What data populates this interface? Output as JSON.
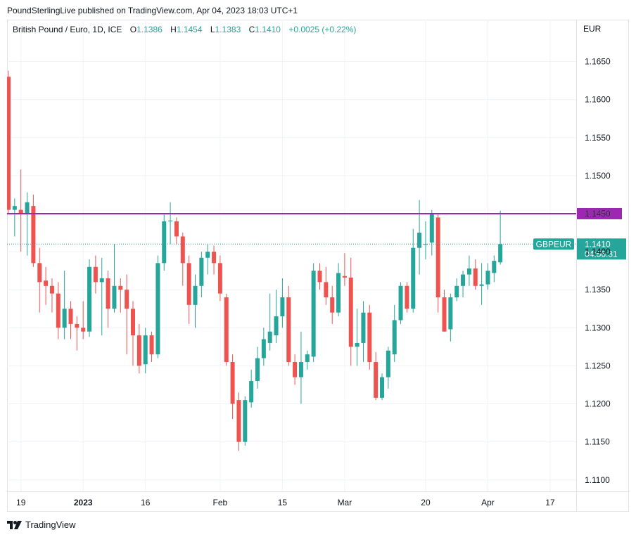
{
  "publisher": "PoundSterlingLive published on TradingView.com, Apr 04, 2023 18:03 UTC+1",
  "legend": {
    "symbol": "British Pound / Euro, 1D, ICE",
    "o_label": "O",
    "o_value": "1.1386",
    "h_label": "H",
    "h_value": "1.1454",
    "l_label": "L",
    "l_value": "1.1383",
    "c_label": "C",
    "c_value": "1.1410",
    "change": "+0.0025 (+0.22%)"
  },
  "currency": "EUR",
  "footer_brand": "TradingView",
  "colors": {
    "up": "#26a69a",
    "down": "#ef5350",
    "level": "#9c27b0",
    "grid": "#f0f3fa",
    "axis_text": "#131722"
  },
  "chart_data": {
    "type": "candlestick",
    "title": "British Pound / Euro, 1D, ICE",
    "ylabel": "EUR",
    "ylim": [
      1.1085,
      1.1705
    ],
    "y_ticks": [
      "1.1650",
      "1.1600",
      "1.1550",
      "1.1500",
      "1.1450",
      "1.1400",
      "1.1350",
      "1.1300",
      "1.1250",
      "1.1200",
      "1.1150",
      "1.1100"
    ],
    "x_ticks": [
      {
        "label": "19",
        "index": 2
      },
      {
        "label": "2023",
        "index": 12
      },
      {
        "label": "16",
        "index": 22
      },
      {
        "label": "Feb",
        "index": 34
      },
      {
        "label": "15",
        "index": 44
      },
      {
        "label": "Mar",
        "index": 54
      },
      {
        "label": "20",
        "index": 67
      },
      {
        "label": "Apr",
        "index": 77
      },
      {
        "label": "17",
        "index": 87
      }
    ],
    "resistance_level": {
      "value": 1.145,
      "label": "1.1450"
    },
    "last_price": {
      "value": 1.141,
      "label": "1.1410",
      "countdown": "04:56:31",
      "symbol": "GBPEUR"
    },
    "candles": [
      [
        1.163,
        1.1638,
        1.145,
        1.1455
      ],
      [
        1.1455,
        1.147,
        1.142,
        1.146
      ],
      [
        1.1455,
        1.1508,
        1.14,
        1.145
      ],
      [
        1.145,
        1.1478,
        1.1395,
        1.1465
      ],
      [
        1.146,
        1.1475,
        1.138,
        1.1385
      ],
      [
        1.1385,
        1.1405,
        1.132,
        1.136
      ],
      [
        1.1362,
        1.138,
        1.133,
        1.1355
      ],
      [
        1.1355,
        1.1365,
        1.132,
        1.1345
      ],
      [
        1.1345,
        1.136,
        1.1285,
        1.13
      ],
      [
        1.13,
        1.1375,
        1.1285,
        1.1325
      ],
      [
        1.1325,
        1.1335,
        1.1285,
        1.1305
      ],
      [
        1.1305,
        1.1315,
        1.127,
        1.13
      ],
      [
        1.13,
        1.1335,
        1.1285,
        1.1295
      ],
      [
        1.1295,
        1.139,
        1.1288,
        1.138
      ],
      [
        1.138,
        1.1395,
        1.1345,
        1.136
      ],
      [
        1.136,
        1.1392,
        1.129,
        1.1365
      ],
      [
        1.1365,
        1.1375,
        1.13,
        1.1325
      ],
      [
        1.1325,
        1.141,
        1.132,
        1.1355
      ],
      [
        1.1355,
        1.1365,
        1.132,
        1.135
      ],
      [
        1.135,
        1.137,
        1.1265,
        1.1325
      ],
      [
        1.1325,
        1.1335,
        1.125,
        1.129
      ],
      [
        1.129,
        1.1305,
        1.124,
        1.125
      ],
      [
        1.1252,
        1.13,
        1.124,
        1.129
      ],
      [
        1.129,
        1.1295,
        1.1255,
        1.1265
      ],
      [
        1.1265,
        1.1395,
        1.126,
        1.1385
      ],
      [
        1.1385,
        1.145,
        1.1375,
        1.144
      ],
      [
        1.144,
        1.1465,
        1.141,
        1.1441
      ],
      [
        1.144,
        1.1445,
        1.141,
        1.142
      ],
      [
        1.142,
        1.1425,
        1.1355,
        1.1385
      ],
      [
        1.1385,
        1.1395,
        1.1305,
        1.133
      ],
      [
        1.133,
        1.137,
        1.13,
        1.1355
      ],
      [
        1.1355,
        1.14,
        1.134,
        1.1392
      ],
      [
        1.1392,
        1.141,
        1.137,
        1.14
      ],
      [
        1.14,
        1.1408,
        1.137,
        1.1385
      ],
      [
        1.1385,
        1.1395,
        1.1335,
        1.1345
      ],
      [
        1.134,
        1.1345,
        1.125,
        1.1255
      ],
      [
        1.1255,
        1.1265,
        1.118,
        1.12
      ],
      [
        1.1205,
        1.1215,
        1.1138,
        1.115
      ],
      [
        1.115,
        1.121,
        1.1145,
        1.1205
      ],
      [
        1.1202,
        1.1245,
        1.1195,
        1.123
      ],
      [
        1.123,
        1.1275,
        1.122,
        1.126
      ],
      [
        1.126,
        1.13,
        1.125,
        1.1285
      ],
      [
        1.128,
        1.1345,
        1.127,
        1.1295
      ],
      [
        1.129,
        1.135,
        1.128,
        1.1315
      ],
      [
        1.1315,
        1.1365,
        1.13,
        1.134
      ],
      [
        1.134,
        1.1355,
        1.125,
        1.1255
      ],
      [
        1.1255,
        1.1265,
        1.1225,
        1.1235
      ],
      [
        1.1235,
        1.1295,
        1.12,
        1.1255
      ],
      [
        1.1255,
        1.127,
        1.1245,
        1.1265
      ],
      [
        1.1262,
        1.1385,
        1.1255,
        1.1375
      ],
      [
        1.1375,
        1.1385,
        1.135,
        1.136
      ],
      [
        1.136,
        1.138,
        1.133,
        1.134
      ],
      [
        1.134,
        1.1355,
        1.1305,
        1.132
      ],
      [
        1.132,
        1.1385,
        1.1315,
        1.1372
      ],
      [
        1.1368,
        1.1398,
        1.1355,
        1.1366
      ],
      [
        1.1366,
        1.1392,
        1.125,
        1.1275
      ],
      [
        1.1275,
        1.1325,
        1.125,
        1.128
      ],
      [
        1.128,
        1.1335,
        1.1255,
        1.132
      ],
      [
        1.132,
        1.133,
        1.1245,
        1.1255
      ],
      [
        1.1255,
        1.1268,
        1.1205,
        1.1208
      ],
      [
        1.1208,
        1.124,
        1.1205,
        1.1235
      ],
      [
        1.1235,
        1.1275,
        1.122,
        1.127
      ],
      [
        1.1265,
        1.133,
        1.1255,
        1.131
      ],
      [
        1.131,
        1.136,
        1.1305,
        1.1355
      ],
      [
        1.1355,
        1.136,
        1.132,
        1.1325
      ],
      [
        1.1325,
        1.143,
        1.132,
        1.1405
      ],
      [
        1.1405,
        1.1468,
        1.137,
        1.1425
      ],
      [
        1.141,
        1.144,
        1.139,
        1.141
      ],
      [
        1.1412,
        1.1455,
        1.1395,
        1.145
      ],
      [
        1.1445,
        1.145,
        1.132,
        1.134
      ],
      [
        1.134,
        1.135,
        1.1295,
        1.1295
      ],
      [
        1.1298,
        1.1345,
        1.1282,
        1.134
      ],
      [
        1.134,
        1.1365,
        1.1335,
        1.1355
      ],
      [
        1.1355,
        1.1375,
        1.134,
        1.137
      ],
      [
        1.137,
        1.1395,
        1.1355,
        1.1378
      ],
      [
        1.1378,
        1.139,
        1.135,
        1.1355
      ],
      [
        1.1355,
        1.1385,
        1.133,
        1.1357
      ],
      [
        1.1357,
        1.1385,
        1.135,
        1.1375
      ],
      [
        1.1372,
        1.1395,
        1.136,
        1.1388
      ],
      [
        1.1386,
        1.1454,
        1.1383,
        1.141
      ]
    ]
  }
}
